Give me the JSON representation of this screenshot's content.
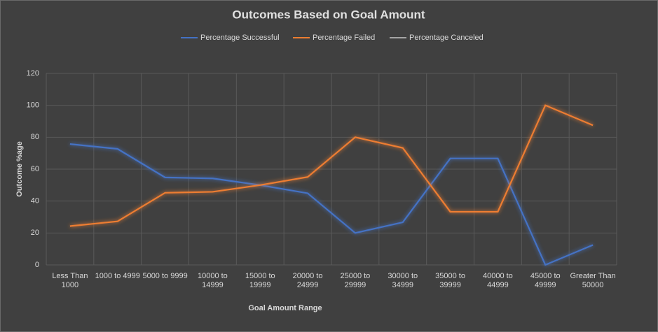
{
  "chart_data": {
    "type": "line",
    "title": "Outcomes Based on Goal Amount",
    "x_label": "Goal Amount Range",
    "y_label": "Outcome %age",
    "categories": [
      "Less Than 1000",
      "1000 to 4999",
      "5000 to 9999",
      "10000 to 14999",
      "15000 to 19999",
      "20000 to 24999",
      "25000 to 29999",
      "30000 to 34999",
      "35000 to 39999",
      "40000 to 44999",
      "45000 to 49999",
      "Greater Than 50000"
    ],
    "series": [
      {
        "name": "Percentage Successful",
        "color": "#4472c4",
        "values": [
          75.7,
          72.7,
          54.8,
          54.2,
          50,
          44.9,
          20,
          26.7,
          66.7,
          66.7,
          0,
          12.5
        ]
      },
      {
        "name": "Percentage Failed",
        "color": "#ed7d31",
        "values": [
          24.3,
          27.3,
          45.2,
          45.8,
          50,
          55.1,
          80,
          73.3,
          33.3,
          33.3,
          100,
          87.5
        ]
      },
      {
        "name": "Percentage Canceled",
        "color": "#a5a5a5",
        "values": [
          0,
          0,
          0,
          0,
          0,
          0,
          0,
          0,
          0,
          0,
          0,
          0
        ]
      }
    ],
    "ylim": [
      0,
      120
    ],
    "yticks": [
      0,
      20,
      40,
      60,
      80,
      100,
      120
    ],
    "grid": true,
    "legend": "top"
  }
}
